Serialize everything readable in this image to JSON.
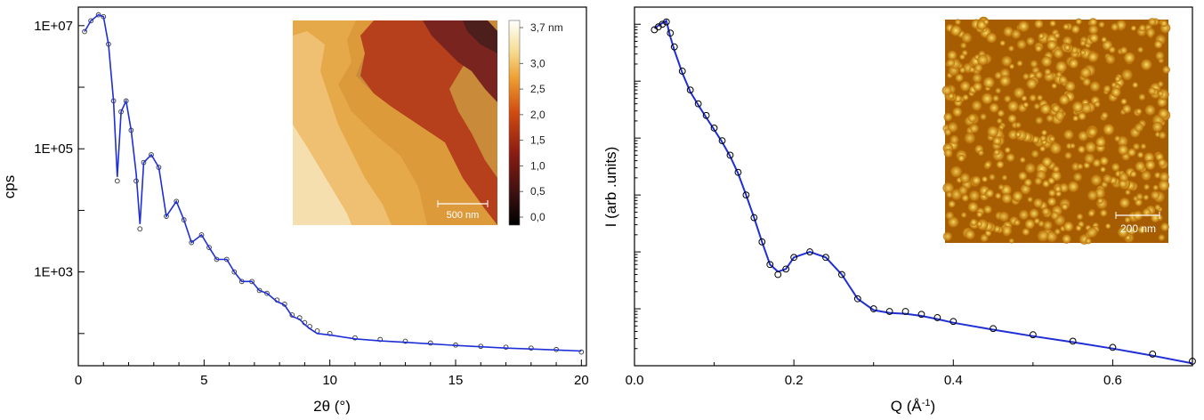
{
  "chart_data": [
    {
      "type": "line",
      "panel": "left",
      "xlabel": "2θ (°)",
      "ylabel": "cps",
      "xlim": [
        0,
        20.2
      ],
      "ylim": [
        30,
        20000000
      ],
      "yscale": "log",
      "xticks": [
        "0",
        "5",
        "10",
        "15",
        "20"
      ],
      "yticks": [
        "1E+03",
        "1E+05",
        "1E+07"
      ],
      "series": [
        {
          "role": "measured",
          "marker": "open circle",
          "color": "#333333",
          "x": [
            0.25,
            0.5,
            0.8,
            1.0,
            1.2,
            1.4,
            1.55,
            1.7,
            1.9,
            2.1,
            2.3,
            2.45,
            2.6,
            2.9,
            3.2,
            3.5,
            3.9,
            4.2,
            4.5,
            4.9,
            5.2,
            5.5,
            5.9,
            6.2,
            6.5,
            6.9,
            7.2,
            7.5,
            7.9,
            8.2,
            8.5,
            8.8,
            9.0,
            9.2,
            9.5,
            10.0,
            11,
            12,
            13,
            14,
            15,
            16,
            17,
            18,
            19,
            20
          ],
          "y": [
            8000000,
            12000000,
            15000000,
            14000000,
            5000000,
            600000,
            30000,
            400000,
            600000,
            200000,
            30000,
            5000,
            60000,
            80000,
            50000,
            8000,
            14000,
            7000,
            3000,
            4000,
            2500,
            1600,
            1600,
            1000,
            700,
            700,
            500,
            450,
            350,
            300,
            200,
            180,
            150,
            130,
            110,
            100,
            85,
            80,
            75,
            70,
            65,
            62,
            60,
            58,
            55,
            50
          ]
        },
        {
          "role": "fit",
          "color": "#1f2fd6",
          "x": [
            0.25,
            0.5,
            0.8,
            1.0,
            1.2,
            1.4,
            1.55,
            1.7,
            1.9,
            2.1,
            2.3,
            2.45,
            2.6,
            2.9,
            3.2,
            3.5,
            3.9,
            4.2,
            4.5,
            4.9,
            5.2,
            5.5,
            5.9,
            6.2,
            6.5,
            6.9,
            7.2,
            7.5,
            7.9,
            8.2,
            8.5,
            8.8,
            9.0,
            9.2,
            9.5,
            10.0,
            11,
            12,
            13,
            14,
            15,
            16,
            17,
            18,
            19,
            20
          ],
          "y": [
            8000000,
            12000000,
            15000000,
            14000000,
            5000000,
            600000,
            35000,
            400000,
            600000,
            200000,
            40000,
            6000,
            60000,
            80000,
            50000,
            8000,
            14000,
            7000,
            3000,
            4000,
            2500,
            1600,
            1600,
            1000,
            700,
            700,
            500,
            450,
            330,
            290,
            190,
            170,
            140,
            120,
            100,
            95,
            82,
            76,
            72,
            68,
            64,
            61,
            58,
            56,
            54,
            52
          ]
        }
      ],
      "inset": {
        "type": "heatmap",
        "colorbar_ticks": [
          "0,0",
          "0,5",
          "1,0",
          "1,5",
          "2,0",
          "2,5",
          "3,0",
          "3,7 nm"
        ],
        "scale_bar": "500 nm"
      }
    },
    {
      "type": "scatter",
      "panel": "right",
      "xlabel": "Q (Å",
      "xlabel_sup": "-1",
      "xlabel_end": ")",
      "ylabel": "I (arb .units)",
      "xlim": [
        0,
        0.7
      ],
      "yscale": "log",
      "ylim": [
        1e-06,
        2
      ],
      "xticks": [
        "0.0",
        "0.2",
        "0.4",
        "0.6"
      ],
      "series": [
        {
          "role": "measured",
          "marker": "open circle",
          "color": "#000000",
          "x": [
            0.025,
            0.03,
            0.035,
            0.04,
            0.045,
            0.05,
            0.06,
            0.07,
            0.08,
            0.09,
            0.1,
            0.11,
            0.12,
            0.13,
            0.14,
            0.15,
            0.16,
            0.17,
            0.18,
            0.19,
            0.2,
            0.22,
            0.24,
            0.26,
            0.28,
            0.3,
            0.32,
            0.34,
            0.36,
            0.38,
            0.4,
            0.45,
            0.5,
            0.55,
            0.6,
            0.65,
            0.7
          ],
          "y": [
            0.8,
            0.9,
            1.0,
            1.1,
            0.7,
            0.4,
            0.15,
            0.07,
            0.04,
            0.025,
            0.015,
            0.009,
            0.005,
            0.0025,
            0.001,
            0.0004,
            0.00015,
            6e-05,
            4e-05,
            5e-05,
            8e-05,
            0.0001,
            8e-05,
            4e-05,
            1.5e-05,
            1e-05,
            9e-06,
            9e-06,
            8e-06,
            7e-06,
            6e-06,
            4.5e-06,
            3.5e-06,
            2.7e-06,
            2.1e-06,
            1.6e-06,
            1.2e-06
          ]
        },
        {
          "role": "fit",
          "color": "#1f2fd6",
          "x": [
            0.025,
            0.03,
            0.035,
            0.04,
            0.045,
            0.05,
            0.06,
            0.07,
            0.08,
            0.09,
            0.1,
            0.11,
            0.12,
            0.13,
            0.14,
            0.15,
            0.16,
            0.17,
            0.18,
            0.19,
            0.2,
            0.22,
            0.24,
            0.26,
            0.28,
            0.3,
            0.32,
            0.34,
            0.36,
            0.38,
            0.4,
            0.45,
            0.5,
            0.55,
            0.6,
            0.65,
            0.7
          ],
          "y": [
            0.85,
            0.95,
            1.05,
            1.15,
            0.6,
            0.35,
            0.14,
            0.065,
            0.038,
            0.023,
            0.014,
            0.0085,
            0.0048,
            0.0024,
            0.001,
            0.0004,
            0.00015,
            6e-05,
            4.5e-05,
            5e-05,
            8e-05,
            0.0001,
            8e-05,
            4e-05,
            1.5e-05,
            9.5e-06,
            8.5e-06,
            8.2e-06,
            7.5e-06,
            6.6e-06,
            5.7e-06,
            4.3e-06,
            3.3e-06,
            2.6e-06,
            2e-06,
            1.5e-06,
            1.1e-06
          ]
        }
      ],
      "inset": {
        "type": "image",
        "scale_bar": "200 nm"
      }
    }
  ]
}
